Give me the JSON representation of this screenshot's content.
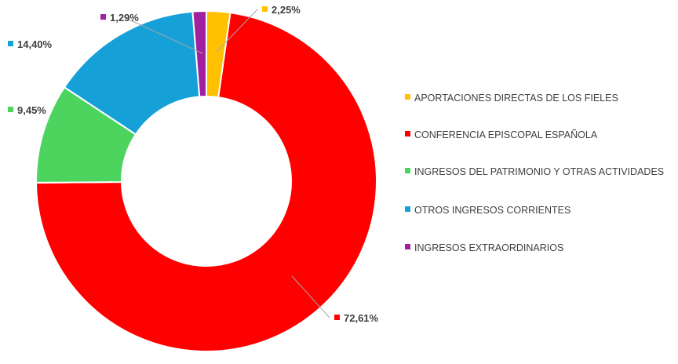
{
  "chart_data": {
    "type": "pie",
    "style": "donut",
    "title": "",
    "legend_position": "right",
    "series": [
      {
        "name": "APORTACIONES DIRECTAS DE LOS FIELES",
        "value": 2.25,
        "label": "2,25%",
        "color": "#FFC000"
      },
      {
        "name": "CONFERENCIA EPISCOPAL ESPAÑOLA",
        "value": 72.61,
        "label": "72,61%",
        "color": "#FF0000"
      },
      {
        "name": "INGRESOS DEL PATRIMONIO Y OTRAS ACTIVIDADES",
        "value": 9.45,
        "label": "9,45%",
        "color": "#4CD45F"
      },
      {
        "name": "OTROS INGRESOS CORRIENTES",
        "value": 14.4,
        "label": "14,40%",
        "color": "#16A0D8"
      },
      {
        "name": "INGRESOS EXTRAORDINARIOS",
        "value": 1.29,
        "label": "1,29%",
        "color": "#A020A0"
      }
    ]
  }
}
